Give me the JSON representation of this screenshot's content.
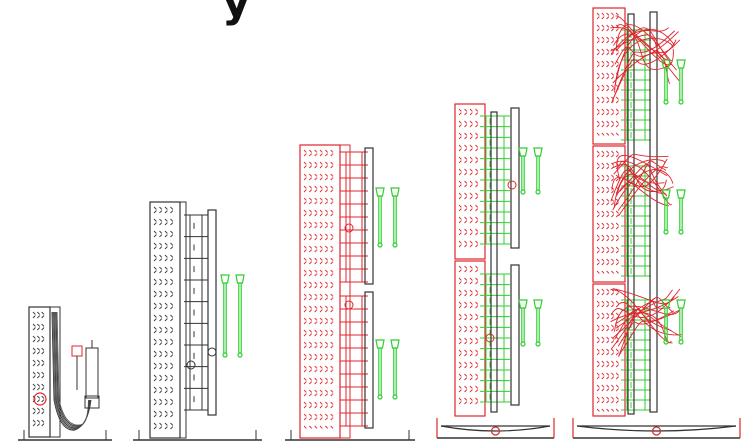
{
  "header": {
    "title_fragment": "y"
  },
  "colors": {
    "outline": "#222222",
    "red": "#e0242b",
    "green": "#2fcf2f",
    "dark": "#333333"
  },
  "stages": [
    {
      "id": "stage-1",
      "panel": "perforated",
      "has_cable_loop": true,
      "color": "dark"
    },
    {
      "id": "stage-2",
      "panel": "perforated",
      "rails": 1,
      "color": "dark",
      "probes": 2
    },
    {
      "id": "stage-3",
      "panel": "perforated",
      "rails": 2,
      "color": "red",
      "probes": 4
    },
    {
      "id": "stage-4",
      "panel": "perforated",
      "modules": 2,
      "color": "red",
      "probes": 4,
      "base": "bridge"
    },
    {
      "id": "stage-5",
      "panel": "perforated",
      "modules": 3,
      "color": "red",
      "probes": 6,
      "base": "bridge",
      "wiring": true
    }
  ]
}
